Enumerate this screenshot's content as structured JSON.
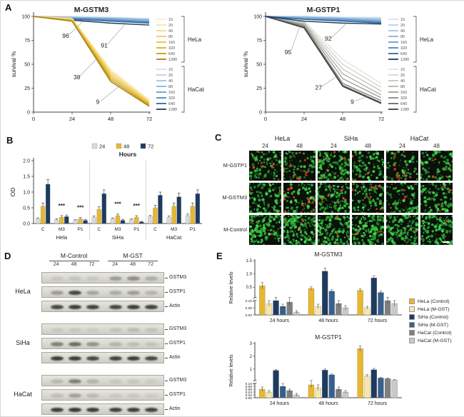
{
  "figure": {
    "panel_labels": {
      "A": "A",
      "B": "B",
      "C": "C",
      "D": "D",
      "E": "E"
    }
  },
  "chart_data": [
    {
      "id": "survival-gstm3",
      "type": "line",
      "title": "M-GSTM3",
      "xlabel": "",
      "ylabel": "survival %",
      "x": [
        0,
        24,
        48,
        72
      ],
      "xlim": [
        0,
        72
      ],
      "ylim": [
        0,
        100
      ],
      "xticks": [
        0,
        24,
        48,
        72
      ],
      "yticks": [
        0,
        25,
        50,
        75,
        100
      ],
      "legend_groups": [
        {
          "name": "HeLa",
          "labels": [
            "10",
            "20",
            "40",
            "80",
            "160",
            "320",
            "640",
            "1280"
          ],
          "colors": [
            "#f9f0c8",
            "#f6e6a4",
            "#f2da7e",
            "#eecd58",
            "#e9c13a",
            "#ddb024",
            "#c89a1b",
            "#a8811a"
          ],
          "series": [
            [
              100,
              98,
              45,
              13
            ],
            [
              100,
              98,
              43,
              12
            ],
            [
              100,
              97,
              42,
              11
            ],
            [
              100,
              97,
              40,
              10
            ],
            [
              100,
              96,
              38,
              9
            ],
            [
              100,
              96,
              36,
              8
            ],
            [
              100,
              95,
              34,
              7
            ],
            [
              100,
              95,
              32,
              6
            ]
          ]
        },
        {
          "name": "HaCat",
          "labels": [
            "10",
            "20",
            "40",
            "80",
            "160",
            "320",
            "640",
            "1280"
          ],
          "colors": [
            "#d4e2f0",
            "#bcd2e8",
            "#a3c2df",
            "#88b0d5",
            "#6c9cc9",
            "#4e85ba",
            "#3268a0",
            "#1f3a5f"
          ],
          "series": [
            [
              100,
              100,
              99,
              98
            ],
            [
              100,
              99,
              99,
              97
            ],
            [
              100,
              99,
              98,
              97
            ],
            [
              100,
              99,
              98,
              96
            ],
            [
              100,
              98,
              97,
              95
            ],
            [
              100,
              98,
              96,
              94
            ],
            [
              100,
              97,
              95,
              93
            ],
            [
              100,
              96,
              93,
              91
            ]
          ]
        }
      ],
      "annotations": [
        {
          "text": "96",
          "lx": 20,
          "ly": 79,
          "tx": 31,
          "ty": 95
        },
        {
          "text": "91",
          "lx": 44,
          "ly": 69,
          "tx": 57,
          "ty": 92
        },
        {
          "text": "38",
          "lx": 27,
          "ly": 36,
          "tx": 40,
          "ty": 57
        },
        {
          "text": "9",
          "lx": 40,
          "ly": 10,
          "tx": 54,
          "ty": 28
        }
      ]
    },
    {
      "id": "survival-gstp1",
      "type": "line",
      "title": "M-GSTP1",
      "xlabel": "",
      "ylabel": "survival %",
      "x": [
        0,
        24,
        48,
        72
      ],
      "xlim": [
        0,
        72
      ],
      "ylim": [
        0,
        100
      ],
      "xticks": [
        0,
        24,
        48,
        72
      ],
      "yticks": [
        0,
        25,
        50,
        75,
        100
      ],
      "legend_groups": [
        {
          "name": "HeLa",
          "labels": [
            "10",
            "20",
            "40",
            "80",
            "160",
            "320",
            "640",
            "1280"
          ],
          "colors": [
            "#d4e2f0",
            "#bcd2e8",
            "#a3c2df",
            "#88b0d5",
            "#6c9cc9",
            "#4e85ba",
            "#3268a0",
            "#1f3a5f"
          ],
          "series": [
            [
              100,
              100,
              99,
              99
            ],
            [
              100,
              100,
              99,
              98
            ],
            [
              100,
              99,
              98,
              97
            ],
            [
              100,
              99,
              98,
              96
            ],
            [
              100,
              98,
              97,
              95
            ],
            [
              100,
              97,
              96,
              94
            ],
            [
              100,
              97,
              95,
              93
            ],
            [
              100,
              95,
              93,
              92
            ]
          ]
        },
        {
          "name": "HaCat",
          "labels": [
            "10",
            "20",
            "40",
            "80",
            "160",
            "320",
            "640",
            "1280"
          ],
          "colors": [
            "#e4e4dc",
            "#d6d6ce",
            "#c6c6be",
            "#b4b4ac",
            "#a0a098",
            "#888882",
            "#6a6a66",
            "#3e3e3c"
          ],
          "series": [
            [
              100,
              95,
              55,
              30
            ],
            [
              100,
              94,
              50,
              26
            ],
            [
              100,
              93,
              45,
              22
            ],
            [
              100,
              92,
              40,
              18
            ],
            [
              100,
              91,
              35,
              15
            ],
            [
              100,
              90,
              30,
              12
            ],
            [
              100,
              89,
              28,
              10
            ],
            [
              100,
              88,
              27,
              9
            ]
          ]
        }
      ],
      "annotations": [
        {
          "text": "95",
          "lx": 14,
          "ly": 62,
          "tx": 22,
          "ty": 93
        },
        {
          "text": "92",
          "lx": 39,
          "ly": 76,
          "tx": 50,
          "ty": 92
        },
        {
          "text": "27",
          "lx": 33,
          "ly": 25,
          "tx": 44,
          "ty": 37
        },
        {
          "text": "9",
          "lx": 54,
          "ly": 10,
          "tx": 63,
          "ty": 16
        }
      ]
    },
    {
      "id": "viability-od",
      "type": "bar",
      "title": "",
      "ylabel": "OD",
      "ylim": [
        0,
        2
      ],
      "yticks": [
        "0.0",
        "0.5",
        "1.0",
        "1.5",
        "2.0"
      ],
      "categories": [
        "C",
        "M3",
        "P1",
        "C",
        "M3",
        "P1",
        "C",
        "M3",
        "P1"
      ],
      "group_labels": [
        "Hela",
        "SiHa",
        "HaCat"
      ],
      "legend": {
        "title": "Hours",
        "entries": [
          {
            "label": "24",
            "color": "#d9d9d9"
          },
          {
            "label": "48",
            "color": "#e8b72e"
          },
          {
            "label": "72",
            "color": "#1f3a5f"
          }
        ]
      },
      "series": [
        {
          "name": "24",
          "color": "#d9d9d9",
          "values": [
            0.15,
            0.12,
            0.1,
            0.2,
            0.15,
            0.12,
            0.22,
            0.2,
            0.25
          ],
          "errors": [
            0.03,
            0.03,
            0.02,
            0.04,
            0.03,
            0.03,
            0.04,
            0.04,
            0.05
          ]
        },
        {
          "name": "48",
          "color": "#e8b72e",
          "values": [
            0.55,
            0.2,
            0.15,
            0.45,
            0.25,
            0.2,
            0.5,
            0.55,
            0.55
          ],
          "errors": [
            0.1,
            0.05,
            0.04,
            0.08,
            0.05,
            0.05,
            0.08,
            0.1,
            0.1
          ]
        },
        {
          "name": "72",
          "color": "#1f3a5f",
          "values": [
            1.25,
            0.22,
            0.1,
            0.95,
            0.1,
            0.05,
            0.9,
            0.85,
            0.95
          ],
          "errors": [
            0.15,
            0.05,
            0.03,
            0.12,
            0.03,
            0.02,
            0.1,
            0.12,
            0.12
          ]
        }
      ],
      "sig_marks": [
        {
          "cat": 1,
          "y": 0.5,
          "text": "***"
        },
        {
          "cat": 2,
          "y": 0.44,
          "text": "***"
        },
        {
          "cat": 4,
          "y": 0.56,
          "text": "***"
        },
        {
          "cat": 5,
          "y": 0.5,
          "text": "***"
        }
      ]
    },
    {
      "id": "relative-gstm3",
      "type": "bar-broken",
      "title": "M-GSTM3",
      "ylabel": "Relative levels",
      "categories": [
        "24 hours",
        "48 hours",
        "72 hours"
      ],
      "brk": {
        "low_max": 0.1,
        "low_ticks": [
          "0.00",
          "0.05",
          "0.10"
        ],
        "high_ticks": [
          "0.5",
          "1.0",
          "1.5"
        ],
        "high_max": 1.5
      },
      "series": [
        {
          "name": "HeLa (Control)",
          "color": "#e8b72e",
          "values": [
            0.55,
            0.45,
            0.38
          ],
          "errors": [
            0.12,
            0.06,
            0.05
          ]
        },
        {
          "name": "HeLa (M-GST)",
          "color": "#f6e7ad",
          "values": [
            0.08,
            0.06,
            0.05
          ],
          "errors": [
            0.02,
            0.015,
            0.01
          ]
        },
        {
          "name": "SiHa (Control)",
          "color": "#1f3a5f",
          "values": [
            0.1,
            1.1,
            0.85
          ],
          "errors": [
            0.02,
            0.12,
            0.08
          ]
        },
        {
          "name": "SiHa (M-GST)",
          "color": "#35618f",
          "values": [
            0.06,
            0.35,
            0.3
          ],
          "errors": [
            0.015,
            0.05,
            0.05
          ]
        },
        {
          "name": "HaCat (Control)",
          "color": "#7f7f7f",
          "values": [
            0.09,
            0.08,
            0.1
          ],
          "errors": [
            0.02,
            0.02,
            0.02
          ]
        },
        {
          "name": "HaCat (M-GST)",
          "color": "#c9c9c9",
          "values": [
            0.02,
            0.05,
            0.08
          ],
          "errors": [
            0.01,
            0.015,
            0.02
          ]
        }
      ]
    },
    {
      "id": "relative-gstp1",
      "type": "bar-broken",
      "title": "M-GSTP1",
      "ylabel": "Relative levels",
      "categories": [
        "24 hours",
        "48 hours",
        "72 hours"
      ],
      "brk": {
        "low_max": 0.1,
        "low_ticks": [
          "0.00",
          "0.02",
          "0.04",
          "0.06",
          "0.08",
          "0.10"
        ],
        "high_ticks": [
          "1",
          "2",
          "3"
        ],
        "high_max": 3
      },
      "series": [
        {
          "name": "HeLa (Control)",
          "color": "#e8b72e",
          "values": [
            0.06,
            0.09,
            2.6
          ],
          "errors": [
            0.015,
            0.02,
            0.2
          ]
        },
        {
          "name": "HeLa (M-GST)",
          "color": "#f6e7ad",
          "values": [
            0.04,
            0.07,
            0.48
          ],
          "errors": [
            0.01,
            0.02,
            0.08
          ]
        },
        {
          "name": "SiHa (Control)",
          "color": "#1f3a5f",
          "values": [
            0.9,
            0.92,
            0.95
          ],
          "errors": [
            0.08,
            0.08,
            0.1
          ]
        },
        {
          "name": "SiHa (M-GST)",
          "color": "#35618f",
          "values": [
            0.08,
            0.55,
            0.3
          ],
          "errors": [
            0.02,
            0.06,
            0.05
          ]
        },
        {
          "name": "HaCat (Control)",
          "color": "#7f7f7f",
          "values": [
            0.05,
            0.06,
            0.25
          ],
          "errors": [
            0.01,
            0.015,
            0.04
          ]
        },
        {
          "name": "HaCat (M-GST)",
          "color": "#c9c9c9",
          "values": [
            0.02,
            0.04,
            0.15
          ],
          "errors": [
            0.01,
            0.01,
            0.03
          ]
        }
      ]
    }
  ],
  "panels": {
    "C": {
      "col_groups": [
        {
          "line": "HeLa",
          "times": [
            "24",
            "48"
          ]
        },
        {
          "line": "SiHa",
          "times": [
            "24",
            "48"
          ]
        },
        {
          "line": "HaCat",
          "times": [
            "24",
            "48"
          ]
        }
      ],
      "rows": [
        {
          "label": "M-GSTP1",
          "cells": [
            {
              "g": 90,
              "r": 10
            },
            {
              "g": 70,
              "r": 18
            },
            {
              "g": 130,
              "r": 12
            },
            {
              "g": 80,
              "r": 8
            },
            {
              "g": 60,
              "r": 14
            },
            {
              "g": 90,
              "r": 6
            }
          ]
        },
        {
          "label": "M-GSTM3",
          "cells": [
            {
              "g": 120,
              "r": 6
            },
            {
              "g": 80,
              "r": 22
            },
            {
              "g": 130,
              "r": 8
            },
            {
              "g": 90,
              "r": 14
            },
            {
              "g": 80,
              "r": 6
            },
            {
              "g": 100,
              "r": 5
            }
          ]
        },
        {
          "label": "M-Control",
          "cells": [
            {
              "g": 150,
              "r": 3
            },
            {
              "g": 160,
              "r": 4
            },
            {
              "g": 150,
              "r": 3
            },
            {
              "g": 155,
              "r": 3
            },
            {
              "g": 140,
              "r": 2
            },
            {
              "g": 150,
              "r": 2,
              "sb": true
            }
          ]
        }
      ]
    },
    "D": {
      "header_groups": [
        {
          "label": "M-Control",
          "lanes": [
            "24",
            "48",
            "72"
          ]
        },
        {
          "label": "M-GST",
          "lanes": [
            "24",
            "48",
            "72"
          ]
        }
      ],
      "blocks": [
        {
          "line": "HeLa",
          "strips": [
            {
              "label": "GSTM3",
              "bands": [
                0.08,
                0.1,
                0.08,
                0.3,
                0.38,
                0.22
              ]
            },
            {
              "label": "GSTP1",
              "bands": [
                0.3,
                0.75,
                0.25,
                0.22,
                0.3,
                0.18
              ]
            },
            {
              "label": "Actin",
              "bands": [
                0.75,
                0.8,
                0.78,
                0.75,
                0.8,
                0.78
              ]
            }
          ]
        },
        {
          "line": "SiHa",
          "strips": [
            {
              "label": "GSTM3",
              "bands": [
                0.08,
                0.08,
                0.06,
                0.1,
                0.14,
                0.1
              ]
            },
            {
              "label": "GSTP1",
              "bands": [
                0.45,
                0.55,
                0.35,
                0.18,
                0.12,
                0.1
              ]
            },
            {
              "label": "Actin",
              "bands": [
                0.8,
                0.8,
                0.75,
                0.78,
                0.8,
                0.75
              ]
            }
          ]
        },
        {
          "line": "HaCat",
          "strips": [
            {
              "label": "GSTM3",
              "bands": [
                0.15,
                0.45,
                0.18,
                0.08,
                0.08,
                0.06
              ]
            },
            {
              "label": "GSTP1",
              "bands": [
                0.12,
                0.28,
                0.15,
                0.08,
                0.08,
                0.06
              ]
            },
            {
              "label": "Actin",
              "bands": [
                0.8,
                0.82,
                0.8,
                0.78,
                0.8,
                0.78
              ]
            }
          ]
        }
      ]
    },
    "E": {
      "legend": [
        {
          "label": "HeLa (Control)",
          "color": "#e8b72e"
        },
        {
          "label": "HeLa (M-GST)",
          "color": "#f6e7ad"
        },
        {
          "label": "SiHa (Control)",
          "color": "#1f3a5f"
        },
        {
          "label": "SiHa (M-GST)",
          "color": "#35618f"
        },
        {
          "label": "HaCat (Control)",
          "color": "#7f7f7f"
        },
        {
          "label": "HaCat (M-GST)",
          "color": "#c9c9c9"
        }
      ]
    }
  }
}
